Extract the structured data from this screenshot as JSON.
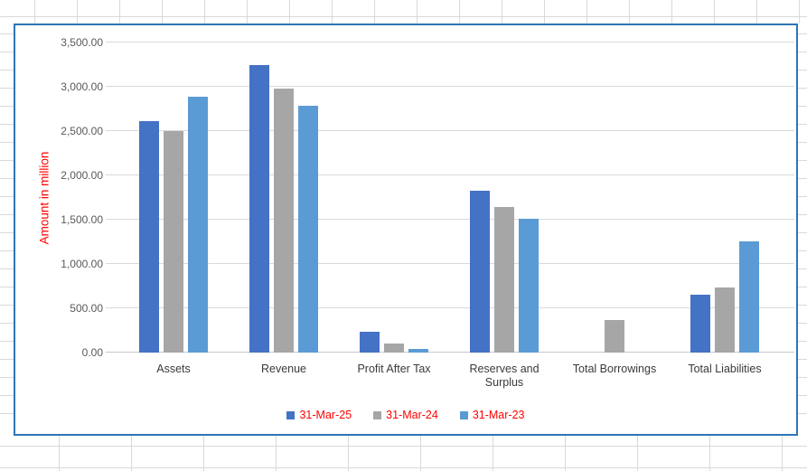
{
  "colors": {
    "series_blue": "#4472C4",
    "series_gray": "#A6A6A6",
    "series_lightblue": "#5B9BD5",
    "chart_border": "#2E75B6",
    "axis_text": "#595959",
    "label_text_red": "#FF0000",
    "gridline": "#D9D9D9"
  },
  "chart_data": {
    "type": "bar",
    "title": "",
    "categories": [
      "Assets",
      "Revenue",
      "Profit After Tax",
      "Reserves and Surplus",
      "Total Borrowings",
      "Total Liabilities"
    ],
    "series": [
      {
        "name": "31-Mar-25",
        "color": "#4472C4",
        "values": [
          2610,
          3245,
          230,
          1830,
          0,
          655
        ]
      },
      {
        "name": "31-Mar-24",
        "color": "#A6A6A6",
        "values": [
          2500,
          2980,
          105,
          1645,
          365,
          735
        ]
      },
      {
        "name": "31-Mar-23",
        "color": "#5B9BD5",
        "values": [
          2890,
          2785,
          45,
          1510,
          0,
          1255
        ]
      }
    ],
    "xlabel": "",
    "ylabel": "Amount in million",
    "ylim": [
      0,
      3500
    ],
    "ytick_step": 500,
    "yticks": [
      "0.00",
      "500.00",
      "1,000.00",
      "1,500.00",
      "2,000.00",
      "2,500.00",
      "3,000.00",
      "3,500.00"
    ],
    "grid": true,
    "legend_position": "bottom"
  }
}
